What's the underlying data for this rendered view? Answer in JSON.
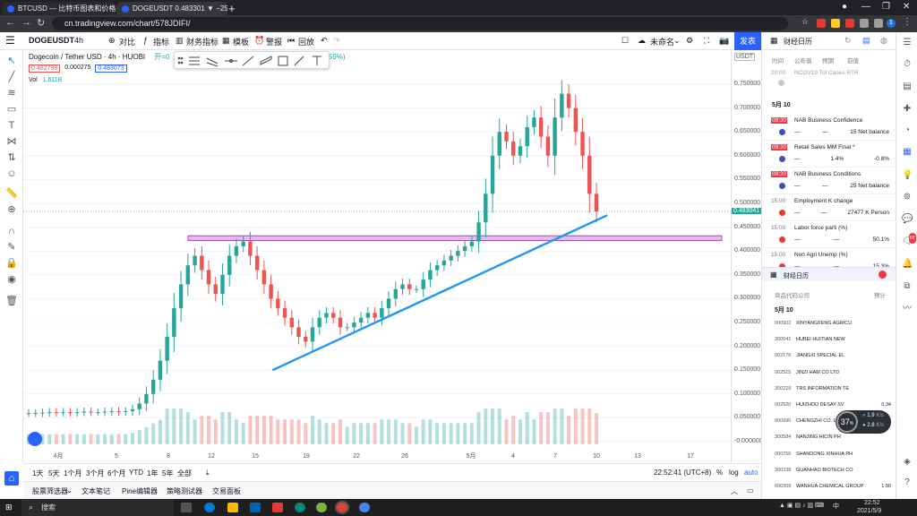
{
  "browser": {
    "tabs": [
      {
        "title": "BTCUSD — 比特币图表和价格"
      },
      {
        "title": "DOGEUSDT 0.483301 ▼ −25..."
      }
    ],
    "url": "cn.tradingview.com/chart/578JDIFI/",
    "new_tab": "+",
    "profile_initial": "1"
  },
  "header": {
    "symbol": "DOGEUSDT",
    "interval": "4h",
    "compare": "对比",
    "indicators": "指标",
    "financials": "财务指标",
    "templates": "模板",
    "alert": "警报",
    "replay": "回放",
    "layout_name": "未命名",
    "publish": "发表"
  },
  "legend": {
    "title": "Dogecoin / Tether USD · 4h · HUOBI",
    "open_prefix": "开=0",
    "change": "37 (+4.59%)",
    "bid": "0.482798",
    "spread": "0.000275",
    "ask": "0.483073",
    "volume_label": "Vol",
    "volume_value": "1.611B"
  },
  "price_axis": {
    "currency": "USDT",
    "labels": [
      "0.750000",
      "0.700000",
      "0.650000",
      "0.600000",
      "0.550000",
      "0.500000",
      "0.450000",
      "0.400000",
      "0.350000",
      "0.300000",
      "0.250000",
      "0.200000",
      "0.150000",
      "0.100000",
      "0.050000",
      "-0.000000"
    ],
    "last_price": "0.483041"
  },
  "time_axis": {
    "labels": [
      "4月",
      "5",
      "8",
      "12",
      "15",
      "19",
      "22",
      "26",
      "5月",
      "4",
      "7",
      "10",
      "13",
      "17"
    ]
  },
  "bottom": {
    "ranges": [
      "1天",
      "5天",
      "1个月",
      "3个月",
      "6个月",
      "YTD",
      "1年",
      "5年",
      "全部"
    ],
    "clock": "22:52:41 (UTC+8)",
    "percent": "%",
    "log": "log",
    "auto": "auto"
  },
  "panels": [
    "股票筛选器",
    "文本笔记",
    "Pine编辑器",
    "策略测试器",
    "交易面板"
  ],
  "right_panel": {
    "title": "财经日历",
    "tabs": [
      "时间",
      "公布值",
      "预期",
      "前值"
    ],
    "top_event": {
      "time": "20:00",
      "name": "NCOV19 Tot Cases RTR"
    },
    "date": "5月 10",
    "events": [
      {
        "time": "09:30",
        "highlight": true,
        "name": "NAB Business Confidence",
        "actual": "—",
        "forecast": "—",
        "previous": "15 Net balance",
        "flag_color": "#3f51b5"
      },
      {
        "time": "09:30",
        "highlight": true,
        "name": "Retail Sales MM Final *",
        "actual": "—",
        "forecast": "1.4%",
        "previous": "-0.8%",
        "flag_color": "#3f51b5"
      },
      {
        "time": "09:30",
        "highlight": true,
        "name": "NAB Business Conditions",
        "actual": "—",
        "forecast": "—",
        "previous": "25 Net balance",
        "flag_color": "#3f51b5"
      },
      {
        "time": "15:00",
        "highlight": false,
        "name": "Employment K change",
        "actual": "—",
        "forecast": "—",
        "previous": "27477 K Person",
        "flag_color": "#e53935"
      },
      {
        "time": "15:00",
        "highlight": false,
        "name": "Labor force parti (%)",
        "actual": "—",
        "forecast": "—",
        "previous": "50.1%",
        "flag_color": "#e53935"
      },
      {
        "time": "15:00",
        "highlight": false,
        "name": "Non Agri Unemp (%)",
        "actual": "—",
        "forecast": "—",
        "previous": "15.3%",
        "flag_color": "#e53935"
      }
    ],
    "lower_title": "财经日历",
    "lower_tabs": [
      "商品代码公司",
      "预计"
    ],
    "lower_date": "5月 10",
    "stocks": [
      {
        "code": "000902",
        "name": "XINYANGFENG AGRICU",
        "value": ""
      },
      {
        "code": "300041",
        "name": "HUBEI HUITIAN NEW",
        "value": ""
      },
      {
        "code": "002176",
        "name": "JIANGXI SPECIAL EL",
        "value": ""
      },
      {
        "code": "002515",
        "name": "JINZI HAM CO LTD",
        "value": ""
      },
      {
        "code": "300229",
        "name": "TRS INFORMATION TE",
        "value": ""
      },
      {
        "code": "002920",
        "name": "HUIZHOU DESAY SV",
        "value": "0.34"
      },
      {
        "code": "000990",
        "name": "CHENGZHI CO. LTD",
        "value": ""
      },
      {
        "code": "300584",
        "name": "NANJING HICIN PH",
        "value": ""
      },
      {
        "code": "000756",
        "name": "SHANDONG XINHUA PH",
        "value": ""
      },
      {
        "code": "300238",
        "name": "GUANHAO BIOTECH CO",
        "value": ""
      },
      {
        "code": "600309",
        "name": "WANHUA CHEMICAL GROUP",
        "value": "1.90"
      },
      {
        "code": "002306",
        "name": "CLOUD LIVE TECHNOL",
        "value": ""
      }
    ]
  },
  "net_widget": {
    "percent": "37",
    "unit": "%",
    "up": "1.9",
    "down": "2.8",
    "rate_unit": "K/s"
  },
  "taskbar": {
    "search": "搜索",
    "time": "22:52",
    "date": "2021/5/9",
    "ime": "中"
  },
  "colors": {
    "up": "#26a69a",
    "down": "#ef5350",
    "trendline": "#2196f3",
    "zone_fill": "#e1bee7",
    "zone_border": "#ab47bc",
    "accent": "#2962ff"
  },
  "chart_data": {
    "type": "candlestick",
    "symbol": "DOGEUSDT",
    "timeframe": "4h",
    "exchange": "HUOBI",
    "price_range": [
      0.0,
      0.75
    ],
    "last_price": 0.483041,
    "close_series": [
      0.06,
      0.06,
      0.061,
      0.062,
      0.061,
      0.062,
      0.061,
      0.062,
      0.063,
      0.062,
      0.062,
      0.063,
      0.064,
      0.063,
      0.064,
      0.068,
      0.08,
      0.1,
      0.13,
      0.17,
      0.22,
      0.28,
      0.33,
      0.37,
      0.39,
      0.36,
      0.33,
      0.31,
      0.35,
      0.39,
      0.41,
      0.42,
      0.39,
      0.36,
      0.33,
      0.3,
      0.28,
      0.26,
      0.24,
      0.22,
      0.21,
      0.24,
      0.26,
      0.27,
      0.26,
      0.24,
      0.24,
      0.25,
      0.26,
      0.27,
      0.26,
      0.28,
      0.3,
      0.32,
      0.33,
      0.32,
      0.32,
      0.34,
      0.36,
      0.37,
      0.38,
      0.39,
      0.4,
      0.41,
      0.42,
      0.46,
      0.52,
      0.6,
      0.65,
      0.63,
      0.6,
      0.62,
      0.66,
      0.68,
      0.64,
      0.6,
      0.68,
      0.73,
      0.7,
      0.65,
      0.6,
      0.52,
      0.483
    ],
    "horizontal_zone": [
      0.422,
      0.432
    ],
    "trendline": {
      "from": {
        "bar": 36,
        "price": 0.15
      },
      "to": {
        "bar": 84,
        "price": 0.475
      }
    }
  }
}
